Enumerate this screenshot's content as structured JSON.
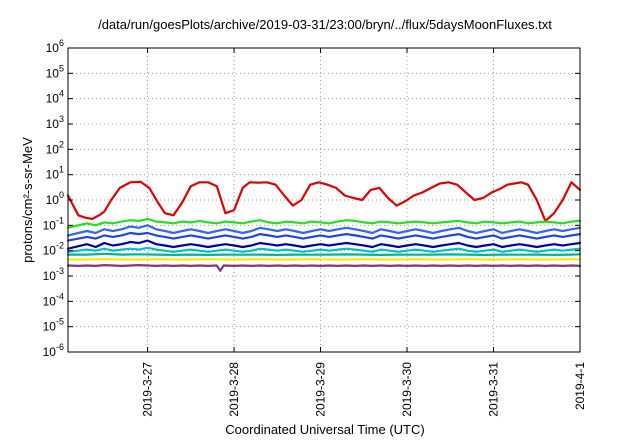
{
  "chart_data": {
    "type": "line",
    "title": "/data/run/goesPlots/archive/2019-03-31/23:00/bryn/../flux/5daysMoonFluxes.txt",
    "xlabel": "Coordinated Universal Time (UTC)",
    "ylabel": "protons/cm²-s-sr-MeV",
    "x_tick_labels": [
      "2019-3-27",
      "2019-3-28",
      "2019-3-29",
      "2019-3-30",
      "2019-3-31",
      "2019-4-1"
    ],
    "x_tick_values": [
      0.5,
      1.5,
      2.5,
      3.5,
      4.5,
      5.5
    ],
    "x_range": [
      -0.42,
      5.5
    ],
    "y_scale": "log",
    "y_range": [
      1e-06,
      1000000.0
    ],
    "y_tick_exponents": [
      -6,
      -5,
      -4,
      -3,
      -2,
      -1,
      0,
      1,
      2,
      3,
      4,
      5,
      6
    ],
    "grid": true,
    "colors": {
      "red": "#e00000",
      "green": "#22e022",
      "blue_light": "#3366ff",
      "blue_mid": "#2244dd",
      "blue_dark": "#0000aa",
      "cyan": "#00c0c0",
      "teal": "#00b0a0",
      "yellow": "#f0f000",
      "purple": "#883388",
      "grid": "#a0a0a0",
      "axes": "#000000"
    },
    "series": [
      {
        "color": "red",
        "x": [
          -0.42,
          -0.36,
          -0.3,
          -0.22,
          -0.14,
          -0.06,
          0.0,
          0.08,
          0.18,
          0.3,
          0.42,
          0.52,
          0.62,
          0.7,
          0.8,
          0.9,
          1.0,
          1.1,
          1.2,
          1.3,
          1.4,
          1.5,
          1.6,
          1.68,
          1.78,
          1.88,
          1.98,
          2.08,
          2.18,
          2.28,
          2.38,
          2.48,
          2.58,
          2.68,
          2.78,
          2.88,
          2.98,
          3.08,
          3.18,
          3.28,
          3.38,
          3.48,
          3.58,
          3.68,
          3.78,
          3.88,
          3.98,
          4.08,
          4.18,
          4.28,
          4.38,
          4.48,
          4.58,
          4.66,
          4.74,
          4.82,
          4.9,
          5.0,
          5.1,
          5.2,
          5.3,
          5.4,
          5.5
        ],
        "y": [
          1.5,
          0.6,
          0.25,
          0.2,
          0.18,
          0.25,
          0.35,
          1.0,
          3.0,
          5.0,
          5.2,
          3.0,
          0.8,
          0.3,
          0.25,
          0.8,
          3.5,
          5.0,
          5.0,
          3.5,
          0.3,
          0.4,
          3.0,
          5.0,
          4.8,
          5.0,
          4.0,
          1.5,
          0.6,
          1.0,
          4.0,
          5.0,
          4.0,
          3.0,
          1.5,
          1.2,
          1.0,
          2.5,
          3.0,
          1.2,
          0.6,
          0.9,
          1.5,
          2.0,
          3.0,
          4.5,
          5.0,
          4.0,
          2.0,
          1.0,
          1.2,
          2.0,
          2.8,
          4.0,
          4.5,
          5.0,
          4.0,
          1.0,
          0.15,
          0.3,
          1.0,
          5.0,
          2.5
        ]
      },
      {
        "color": "green",
        "x": [
          -0.42,
          -0.3,
          -0.2,
          -0.1,
          0.0,
          0.1,
          0.2,
          0.3,
          0.4,
          0.5,
          0.6,
          0.7,
          0.8,
          0.9,
          1.0,
          1.1,
          1.2,
          1.3,
          1.4,
          1.5,
          1.6,
          1.7,
          1.8,
          1.9,
          2.0,
          2.1,
          2.2,
          2.3,
          2.4,
          2.5,
          2.6,
          2.7,
          2.8,
          2.9,
          3.0,
          3.1,
          3.2,
          3.3,
          3.4,
          3.5,
          3.6,
          3.7,
          3.8,
          3.9,
          4.0,
          4.1,
          4.2,
          4.3,
          4.4,
          4.5,
          4.6,
          4.7,
          4.8,
          4.9,
          5.0,
          5.1,
          5.2,
          5.3,
          5.4,
          5.5
        ],
        "y": [
          0.08,
          0.1,
          0.12,
          0.1,
          0.13,
          0.12,
          0.14,
          0.16,
          0.15,
          0.18,
          0.14,
          0.13,
          0.12,
          0.14,
          0.13,
          0.15,
          0.13,
          0.12,
          0.14,
          0.13,
          0.12,
          0.14,
          0.16,
          0.13,
          0.12,
          0.14,
          0.13,
          0.12,
          0.14,
          0.13,
          0.12,
          0.14,
          0.16,
          0.15,
          0.13,
          0.12,
          0.14,
          0.13,
          0.12,
          0.13,
          0.14,
          0.13,
          0.12,
          0.13,
          0.14,
          0.15,
          0.13,
          0.12,
          0.14,
          0.13,
          0.12,
          0.13,
          0.14,
          0.12,
          0.13,
          0.14,
          0.13,
          0.12,
          0.14,
          0.15
        ]
      },
      {
        "color": "blue_light",
        "x": [
          -0.42,
          -0.3,
          -0.2,
          -0.1,
          0.0,
          0.1,
          0.2,
          0.3,
          0.4,
          0.5,
          0.6,
          0.7,
          0.8,
          0.9,
          1.0,
          1.1,
          1.2,
          1.3,
          1.4,
          1.5,
          1.6,
          1.7,
          1.8,
          1.9,
          2.0,
          2.1,
          2.2,
          2.3,
          2.4,
          2.5,
          2.6,
          2.7,
          2.8,
          2.9,
          3.0,
          3.1,
          3.2,
          3.3,
          3.4,
          3.5,
          3.6,
          3.7,
          3.8,
          3.9,
          4.0,
          4.1,
          4.2,
          4.3,
          4.4,
          4.5,
          4.6,
          4.7,
          4.8,
          4.9,
          5.0,
          5.1,
          5.2,
          5.3,
          5.4,
          5.5
        ],
        "y": [
          0.04,
          0.05,
          0.06,
          0.05,
          0.07,
          0.06,
          0.07,
          0.09,
          0.08,
          0.1,
          0.07,
          0.06,
          0.05,
          0.06,
          0.07,
          0.06,
          0.05,
          0.06,
          0.07,
          0.06,
          0.05,
          0.06,
          0.08,
          0.07,
          0.06,
          0.07,
          0.06,
          0.05,
          0.06,
          0.07,
          0.06,
          0.07,
          0.08,
          0.07,
          0.06,
          0.05,
          0.07,
          0.06,
          0.05,
          0.06,
          0.07,
          0.06,
          0.05,
          0.06,
          0.07,
          0.08,
          0.06,
          0.05,
          0.06,
          0.07,
          0.05,
          0.06,
          0.07,
          0.06,
          0.05,
          0.06,
          0.07,
          0.06,
          0.07,
          0.08
        ]
      },
      {
        "color": "blue_mid",
        "x": [
          -0.42,
          -0.3,
          -0.2,
          -0.1,
          0.0,
          0.1,
          0.2,
          0.3,
          0.4,
          0.5,
          0.6,
          0.7,
          0.8,
          0.9,
          1.0,
          1.1,
          1.2,
          1.3,
          1.4,
          1.5,
          1.6,
          1.7,
          1.8,
          1.9,
          2.0,
          2.1,
          2.2,
          2.3,
          2.4,
          2.5,
          2.6,
          2.7,
          2.8,
          2.9,
          3.0,
          3.1,
          3.2,
          3.3,
          3.4,
          3.5,
          3.6,
          3.7,
          3.8,
          3.9,
          4.0,
          4.1,
          4.2,
          4.3,
          4.4,
          4.5,
          4.6,
          4.7,
          4.8,
          4.9,
          5.0,
          5.1,
          5.2,
          5.3,
          5.4,
          5.5
        ],
        "y": [
          0.025,
          0.03,
          0.035,
          0.03,
          0.04,
          0.035,
          0.04,
          0.05,
          0.045,
          0.05,
          0.04,
          0.035,
          0.03,
          0.035,
          0.04,
          0.035,
          0.03,
          0.035,
          0.04,
          0.035,
          0.03,
          0.035,
          0.045,
          0.04,
          0.035,
          0.04,
          0.035,
          0.03,
          0.035,
          0.04,
          0.035,
          0.04,
          0.045,
          0.04,
          0.035,
          0.03,
          0.04,
          0.035,
          0.03,
          0.035,
          0.04,
          0.035,
          0.03,
          0.035,
          0.04,
          0.045,
          0.035,
          0.03,
          0.035,
          0.04,
          0.03,
          0.035,
          0.04,
          0.035,
          0.03,
          0.035,
          0.04,
          0.035,
          0.04,
          0.045
        ]
      },
      {
        "color": "blue_dark",
        "x": [
          -0.42,
          -0.3,
          -0.2,
          -0.1,
          0.0,
          0.1,
          0.2,
          0.3,
          0.4,
          0.5,
          0.6,
          0.7,
          0.8,
          0.9,
          1.0,
          1.1,
          1.2,
          1.3,
          1.4,
          1.5,
          1.6,
          1.7,
          1.8,
          1.9,
          2.0,
          2.1,
          2.2,
          2.3,
          2.4,
          2.5,
          2.6,
          2.7,
          2.8,
          2.9,
          3.0,
          3.1,
          3.2,
          3.3,
          3.4,
          3.5,
          3.6,
          3.7,
          3.8,
          3.9,
          4.0,
          4.1,
          4.2,
          4.3,
          4.4,
          4.5,
          4.6,
          4.7,
          4.8,
          4.9,
          5.0,
          5.1,
          5.2,
          5.3,
          5.4,
          5.5
        ],
        "y": [
          0.012,
          0.015,
          0.018,
          0.014,
          0.02,
          0.016,
          0.018,
          0.022,
          0.02,
          0.025,
          0.018,
          0.016,
          0.014,
          0.016,
          0.018,
          0.016,
          0.014,
          0.016,
          0.018,
          0.016,
          0.014,
          0.016,
          0.02,
          0.018,
          0.016,
          0.018,
          0.016,
          0.014,
          0.016,
          0.018,
          0.016,
          0.018,
          0.02,
          0.018,
          0.016,
          0.014,
          0.018,
          0.016,
          0.014,
          0.016,
          0.018,
          0.016,
          0.014,
          0.016,
          0.018,
          0.02,
          0.016,
          0.014,
          0.016,
          0.018,
          0.014,
          0.016,
          0.018,
          0.016,
          0.014,
          0.016,
          0.018,
          0.016,
          0.018,
          0.02
        ]
      },
      {
        "color": "cyan",
        "x": [
          -0.42,
          -0.3,
          -0.2,
          -0.1,
          0.0,
          0.1,
          0.2,
          0.3,
          0.4,
          0.5,
          0.6,
          0.7,
          0.8,
          0.9,
          1.0,
          1.1,
          1.2,
          1.3,
          1.4,
          1.5,
          1.6,
          1.7,
          1.8,
          1.9,
          2.0,
          2.1,
          2.2,
          2.3,
          2.4,
          2.5,
          2.6,
          2.7,
          2.8,
          2.9,
          3.0,
          3.1,
          3.2,
          3.3,
          3.4,
          3.5,
          3.6,
          3.7,
          3.8,
          3.9,
          4.0,
          4.1,
          4.2,
          4.3,
          4.4,
          4.5,
          4.6,
          4.7,
          4.8,
          4.9,
          5.0,
          5.1,
          5.2,
          5.3,
          5.4,
          5.5
        ],
        "y": [
          0.009,
          0.01,
          0.011,
          0.01,
          0.012,
          0.01,
          0.011,
          0.012,
          0.011,
          0.013,
          0.011,
          0.01,
          0.009,
          0.01,
          0.011,
          0.01,
          0.009,
          0.01,
          0.011,
          0.01,
          0.009,
          0.01,
          0.012,
          0.011,
          0.01,
          0.011,
          0.01,
          0.009,
          0.01,
          0.011,
          0.01,
          0.011,
          0.012,
          0.011,
          0.01,
          0.009,
          0.011,
          0.01,
          0.009,
          0.01,
          0.011,
          0.01,
          0.009,
          0.01,
          0.011,
          0.012,
          0.01,
          0.009,
          0.01,
          0.011,
          0.009,
          0.01,
          0.011,
          0.01,
          0.009,
          0.01,
          0.011,
          0.01,
          0.011,
          0.012
        ]
      },
      {
        "color": "teal",
        "x": [
          -0.42,
          -0.2,
          0.0,
          0.2,
          0.4,
          0.6,
          0.8,
          1.0,
          1.2,
          1.4,
          1.6,
          1.8,
          2.0,
          2.2,
          2.4,
          2.6,
          2.8,
          3.0,
          3.2,
          3.4,
          3.6,
          3.8,
          4.0,
          4.2,
          4.4,
          4.6,
          4.8,
          5.0,
          5.2,
          5.4,
          5.5
        ],
        "y": [
          0.007,
          0.007,
          0.0075,
          0.007,
          0.0072,
          0.007,
          0.0068,
          0.007,
          0.0068,
          0.007,
          0.0069,
          0.007,
          0.0068,
          0.007,
          0.0069,
          0.007,
          0.0071,
          0.007,
          0.0068,
          0.007,
          0.0069,
          0.007,
          0.0071,
          0.007,
          0.0068,
          0.007,
          0.0069,
          0.007,
          0.0068,
          0.007,
          0.0072
        ]
      },
      {
        "color": "yellow",
        "x": [
          -0.42,
          -0.2,
          0.0,
          0.2,
          0.4,
          0.6,
          0.8,
          1.0,
          1.2,
          1.4,
          1.6,
          1.8,
          2.0,
          2.2,
          2.4,
          2.6,
          2.8,
          3.0,
          3.2,
          3.4,
          3.6,
          3.8,
          4.0,
          4.2,
          4.4,
          4.6,
          4.8,
          5.0,
          5.2,
          5.4,
          5.5
        ],
        "y": [
          0.0045,
          0.0045,
          0.0046,
          0.0045,
          0.0045,
          0.0046,
          0.0045,
          0.0045,
          0.0046,
          0.0045,
          0.0045,
          0.0046,
          0.0045,
          0.0045,
          0.0046,
          0.0045,
          0.0045,
          0.0046,
          0.0045,
          0.0045,
          0.0046,
          0.0045,
          0.0045,
          0.0046,
          0.0045,
          0.0045,
          0.0046,
          0.0045,
          0.0045,
          0.0046,
          0.0045
        ]
      },
      {
        "color": "purple",
        "x": [
          -0.42,
          -0.3,
          -0.2,
          -0.1,
          0.0,
          0.1,
          0.2,
          0.3,
          0.4,
          0.5,
          0.6,
          0.7,
          0.8,
          0.9,
          1.0,
          1.1,
          1.2,
          1.3,
          1.34,
          1.38,
          1.5,
          1.6,
          1.7,
          1.8,
          1.9,
          2.0,
          2.1,
          2.2,
          2.3,
          2.4,
          2.5,
          2.6,
          2.7,
          2.8,
          2.9,
          3.0,
          3.1,
          3.2,
          3.3,
          3.4,
          3.5,
          3.6,
          3.7,
          3.8,
          3.9,
          4.0,
          4.1,
          4.2,
          4.3,
          4.4,
          4.5,
          4.6,
          4.7,
          4.8,
          4.9,
          5.0,
          5.1,
          5.2,
          5.3,
          5.4,
          5.5
        ],
        "y": [
          0.0026,
          0.0025,
          0.0026,
          0.0025,
          0.0027,
          0.0026,
          0.0025,
          0.0026,
          0.0027,
          0.0026,
          0.0025,
          0.0026,
          0.0025,
          0.0026,
          0.0025,
          0.0026,
          0.0025,
          0.0026,
          0.0016,
          0.0026,
          0.0025,
          0.0026,
          0.0025,
          0.0026,
          0.0025,
          0.0026,
          0.0025,
          0.0026,
          0.0025,
          0.0026,
          0.0025,
          0.0026,
          0.0025,
          0.0026,
          0.0025,
          0.0026,
          0.0025,
          0.0026,
          0.0025,
          0.0026,
          0.0025,
          0.0026,
          0.0025,
          0.0026,
          0.0025,
          0.0026,
          0.0025,
          0.0026,
          0.0025,
          0.0026,
          0.0025,
          0.0026,
          0.0025,
          0.0026,
          0.0025,
          0.0026,
          0.0025,
          0.0026,
          0.0025,
          0.0026,
          0.0025
        ]
      }
    ]
  }
}
